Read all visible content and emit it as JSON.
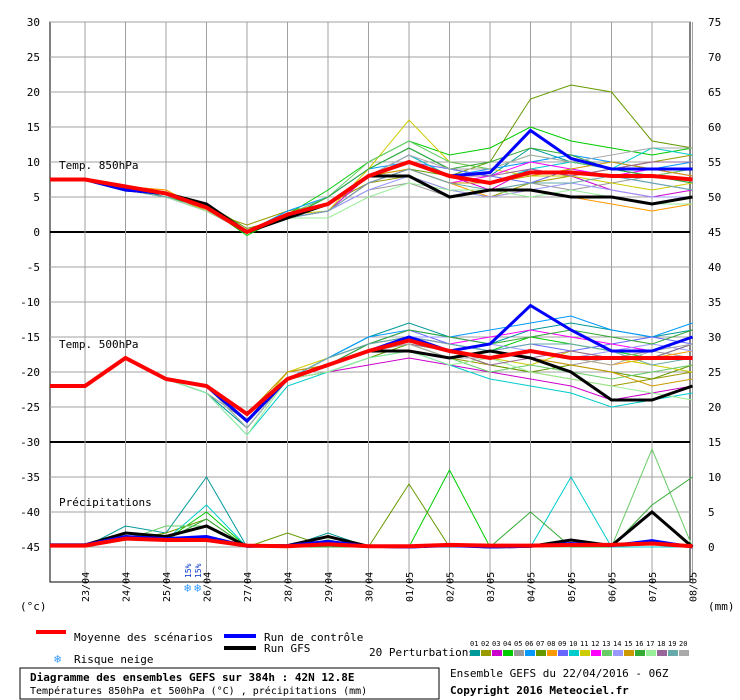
{
  "chart_data": {
    "type": "line",
    "dates": [
      "23/04",
      "24/04",
      "25/04",
      "26/04",
      "27/04",
      "28/04",
      "29/04",
      "30/04",
      "01/05",
      "02/05",
      "03/05",
      "04/05",
      "05/05",
      "06/05",
      "07/05",
      "08/05"
    ],
    "left_axis": {
      "unit": "(°c)",
      "ticks": [
        30,
        25,
        20,
        15,
        10,
        5,
        0,
        -5,
        -10,
        -15,
        -20,
        -25,
        -30,
        -35,
        -40,
        -45
      ]
    },
    "right_axis": {
      "unit": "(mm)",
      "ticks": [
        75,
        70,
        65,
        60,
        55,
        50,
        45,
        40,
        35,
        30,
        25,
        20,
        15,
        10,
        5,
        0
      ]
    },
    "panels": [
      {
        "label": "Temp. 850hPa",
        "ylim": [
          0,
          30
        ]
      },
      {
        "label": "Temp. 500hPa",
        "ylim": [
          -30,
          0
        ]
      },
      {
        "label": "Précipitations",
        "ylim": [
          0,
          10
        ]
      }
    ],
    "t850": {
      "mean": [
        7.5,
        6.5,
        5.5,
        3.5,
        0,
        2.5,
        4,
        8,
        10,
        8,
        7,
        8.5,
        8.5,
        8,
        8,
        7.5
      ],
      "control": [
        7.5,
        6,
        5.5,
        3.5,
        0,
        2.5,
        4,
        8,
        10,
        8,
        8.5,
        14.5,
        10.5,
        9,
        9,
        9
      ],
      "gfs": [
        7.5,
        6,
        5.5,
        4,
        0,
        2,
        4,
        8,
        8,
        5,
        6,
        6,
        5,
        5,
        4,
        5
      ],
      "perturbations": [
        [
          7.5,
          6.5,
          5,
          3,
          0,
          2,
          5,
          9,
          12,
          9,
          8,
          12,
          10,
          9,
          8,
          7
        ],
        [
          7.5,
          6.5,
          6,
          3,
          1,
          3,
          4,
          7,
          8,
          6,
          5,
          7,
          8,
          9,
          10,
          11
        ],
        [
          7.5,
          6,
          5,
          4,
          0,
          2,
          3,
          8,
          11,
          8,
          6,
          9,
          8,
          6,
          5,
          6
        ],
        [
          7.5,
          6.5,
          5.5,
          3.5,
          -0.5,
          2.5,
          6,
          10,
          13,
          11,
          12,
          15,
          13,
          12,
          11,
          12
        ],
        [
          7.5,
          6,
          5,
          4,
          0,
          2,
          3,
          6,
          7,
          5,
          6,
          7,
          6,
          7,
          8,
          9
        ],
        [
          7.5,
          6.5,
          5.5,
          3,
          0,
          3,
          5,
          9,
          10,
          8,
          9,
          10,
          11,
          10,
          9,
          10
        ],
        [
          7.5,
          6,
          5,
          4,
          0.5,
          2,
          3,
          7,
          9,
          8,
          10,
          19,
          21,
          20,
          13,
          12
        ],
        [
          7.5,
          6.5,
          6,
          3,
          0,
          2,
          4,
          8,
          9,
          7,
          5,
          6,
          5,
          4,
          3,
          4
        ],
        [
          7.5,
          6,
          5,
          3.5,
          0,
          2,
          4,
          8,
          10,
          9,
          8,
          7,
          9,
          8,
          7,
          6
        ],
        [
          7.5,
          6,
          5.5,
          3.5,
          0,
          2,
          4,
          8,
          11,
          8,
          7,
          9,
          10,
          9,
          12,
          11
        ],
        [
          7.5,
          6.5,
          5.5,
          4,
          0,
          2.5,
          3,
          9,
          16,
          10,
          9,
          8,
          8,
          7,
          6,
          7
        ],
        [
          7.5,
          6,
          5,
          3,
          0,
          2,
          3,
          7,
          9,
          7,
          8,
          10,
          9,
          8,
          9,
          8
        ],
        [
          7.5,
          6.5,
          5.5,
          3.5,
          0,
          2.5,
          5,
          10,
          13,
          10,
          9,
          11,
          10,
          9,
          8,
          9
        ],
        [
          7.5,
          6,
          5.5,
          3.5,
          0,
          2,
          3,
          6,
          8,
          6,
          5,
          6,
          7,
          6,
          5,
          5
        ],
        [
          7.5,
          6.5,
          5.5,
          3,
          0,
          2,
          4,
          8,
          9,
          7,
          7,
          8,
          9,
          10,
          9,
          8
        ],
        [
          7.5,
          6,
          5,
          3.5,
          0,
          2,
          5,
          9,
          12,
          9,
          10,
          12,
          11,
          9,
          8,
          7
        ],
        [
          7.5,
          6,
          5,
          3,
          0,
          2,
          2,
          5,
          7,
          6,
          6,
          5,
          6,
          5,
          4,
          4
        ],
        [
          7.5,
          6.5,
          5.5,
          3.5,
          0,
          2.5,
          4,
          8,
          10,
          8,
          8,
          9,
          8,
          9,
          10,
          10
        ],
        [
          7.5,
          6,
          5,
          4,
          0,
          2,
          3,
          7,
          9,
          7,
          6,
          7,
          7,
          8,
          7,
          6
        ],
        [
          7.5,
          6.5,
          5.5,
          3.5,
          0,
          2.5,
          4,
          8,
          11,
          9,
          9,
          11,
          10,
          11,
          12,
          12
        ]
      ]
    },
    "t500": {
      "mean": [
        -22,
        -18,
        -21,
        -22,
        -26,
        -21,
        -19,
        -17,
        -15.5,
        -17,
        -18,
        -17,
        -18,
        -18,
        -18,
        -18
      ],
      "control": [
        -22,
        -18,
        -21,
        -22,
        -27,
        -21,
        -19,
        -17,
        -15,
        -17,
        -16,
        -10.5,
        -14,
        -17,
        -17,
        -15
      ],
      "gfs": [
        -22,
        -18,
        -21,
        -22,
        -27,
        -21,
        -19,
        -17,
        -17,
        -18,
        -17,
        -18,
        -20,
        -24,
        -24,
        -22
      ],
      "perturbations": [
        [
          -22,
          -18,
          -21,
          -23,
          -28,
          -21,
          -18,
          -15,
          -13,
          -15,
          -16,
          -14,
          -13,
          -14,
          -15,
          -14
        ],
        [
          -22,
          -18,
          -21,
          -22,
          -26,
          -20,
          -19,
          -17,
          -16,
          -18,
          -19,
          -20,
          -21,
          -22,
          -21,
          -20
        ],
        [
          -22,
          -18,
          -21,
          -22,
          -27,
          -21,
          -20,
          -19,
          -18,
          -19,
          -20,
          -21,
          -22,
          -24,
          -23,
          -22
        ],
        [
          -22,
          -18,
          -21,
          -22,
          -26,
          -21,
          -18,
          -16,
          -15,
          -16,
          -17,
          -15,
          -16,
          -17,
          -18,
          -16
        ],
        [
          -22,
          -18,
          -21,
          -23,
          -27,
          -20,
          -19,
          -17,
          -16,
          -18,
          -17,
          -18,
          -19,
          -18,
          -17,
          -18
        ],
        [
          -22,
          -18,
          -21,
          -22,
          -28,
          -21,
          -18,
          -15,
          -14,
          -15,
          -14,
          -13,
          -12,
          -14,
          -15,
          -13
        ],
        [
          -22,
          -18,
          -21,
          -22,
          -26,
          -21,
          -20,
          -18,
          -16,
          -17,
          -19,
          -20,
          -19,
          -20,
          -21,
          -19
        ],
        [
          -22,
          -18,
          -21,
          -22,
          -27,
          -21,
          -19,
          -17,
          -16,
          -17,
          -18,
          -17,
          -18,
          -19,
          -18,
          -17
        ],
        [
          -22,
          -18,
          -21,
          -22,
          -26,
          -21,
          -19,
          -16,
          -14,
          -16,
          -17,
          -16,
          -17,
          -16,
          -15,
          -16
        ],
        [
          -22,
          -18,
          -21,
          -23,
          -29,
          -22,
          -20,
          -18,
          -17,
          -19,
          -21,
          -22,
          -23,
          -25,
          -24,
          -23
        ],
        [
          -22,
          -18,
          -21,
          -22,
          -27,
          -20,
          -18,
          -16,
          -15,
          -17,
          -18,
          -19,
          -17,
          -18,
          -19,
          -20
        ],
        [
          -22,
          -18,
          -21,
          -22,
          -26,
          -21,
          -19,
          -17,
          -15,
          -16,
          -15,
          -14,
          -15,
          -16,
          -17,
          -15
        ],
        [
          -22,
          -18,
          -21,
          -22,
          -28,
          -21,
          -19,
          -17,
          -16,
          -18,
          -20,
          -19,
          -20,
          -21,
          -20,
          -19
        ],
        [
          -22,
          -18,
          -21,
          -22,
          -27,
          -21,
          -18,
          -16,
          -15,
          -15,
          -16,
          -17,
          -18,
          -17,
          -16,
          -17
        ],
        [
          -22,
          -18,
          -21,
          -22,
          -26,
          -20,
          -19,
          -17,
          -17,
          -18,
          -17,
          -18,
          -19,
          -20,
          -22,
          -21
        ],
        [
          -22,
          -18,
          -21,
          -22,
          -27,
          -21,
          -19,
          -16,
          -14,
          -15,
          -16,
          -15,
          -14,
          -15,
          -16,
          -14
        ],
        [
          -22,
          -18,
          -21,
          -23,
          -29,
          -21,
          -20,
          -18,
          -17,
          -19,
          -18,
          -20,
          -21,
          -22,
          -23,
          -24
        ],
        [
          -22,
          -18,
          -21,
          -22,
          -27,
          -21,
          -19,
          -17,
          -16,
          -17,
          -19,
          -18,
          -17,
          -18,
          -18,
          -16
        ],
        [
          -22,
          -18,
          -21,
          -22,
          -26,
          -21,
          -18,
          -16,
          -15,
          -16,
          -17,
          -16,
          -16,
          -17,
          -19,
          -18
        ],
        [
          -22,
          -18,
          -21,
          -22,
          -28,
          -21,
          -19,
          -17,
          -16,
          -18,
          -18,
          -17,
          -18,
          -19,
          -17,
          -16
        ]
      ]
    },
    "precip": {
      "mean": [
        0.2,
        1.2,
        1.0,
        1.0,
        0.2,
        0.1,
        0.4,
        0.1,
        0.1,
        0.3,
        0.2,
        0.2,
        0.3,
        0.3,
        0.5,
        0.1
      ],
      "control": [
        0.3,
        1.5,
        1.2,
        1.5,
        0.1,
        0.2,
        0.8,
        0.1,
        0,
        0.2,
        0,
        0.1,
        0.5,
        0.2,
        0.9,
        0
      ],
      "gfs": [
        0.3,
        2.0,
        1.5,
        3.0,
        0.1,
        0.2,
        1.5,
        0.1,
        0,
        0.3,
        0,
        0.1,
        1.0,
        0.2,
        5.0,
        0
      ],
      "spikes": [
        [
          0,
          3,
          2,
          10,
          0,
          0,
          2,
          0,
          0,
          0,
          0,
          0,
          0,
          0,
          0,
          0
        ],
        [
          0,
          2,
          1,
          5,
          0,
          0,
          1,
          0,
          0,
          11,
          0,
          0,
          0,
          0,
          0,
          0
        ],
        [
          0,
          1,
          2,
          4,
          0,
          2,
          0,
          0,
          9,
          0,
          0,
          0,
          0,
          0,
          0,
          0
        ],
        [
          0,
          2,
          1,
          6,
          0,
          0,
          0,
          0,
          0,
          0,
          0,
          0,
          10,
          0,
          0,
          0
        ],
        [
          0,
          1,
          3,
          3,
          0,
          0,
          0,
          0,
          0,
          0,
          0,
          0,
          0,
          0,
          14,
          0
        ],
        [
          0,
          2,
          1,
          4,
          0,
          0,
          0,
          0,
          0,
          0,
          0,
          5,
          0,
          0,
          6,
          10
        ]
      ]
    },
    "ensemble_colors": [
      "#009999",
      "#999900",
      "#cc00cc",
      "#00cc00",
      "#999999",
      "#0099ff",
      "#669900",
      "#ff9900",
      "#6666ff",
      "#00cccc",
      "#cccc00",
      "#ff00ff",
      "#66cc66",
      "#9999ff",
      "#cc9900",
      "#33aa33",
      "#99ee99",
      "#996699",
      "#66aaaa",
      "#aaaaaa"
    ],
    "snow_risk": [
      {
        "date": "25/04",
        "pct": "15%"
      },
      {
        "date": "25/04",
        "pct": "15%"
      }
    ]
  },
  "legend": {
    "mean_label": "Moyenne des scénarios",
    "control_label": "Run de contrôle",
    "gfs_label": "Run GFS",
    "pert_label": "20 Perturbations",
    "snow_label": "Risque neige",
    "pert_numbers": [
      "01",
      "02",
      "03",
      "04",
      "05",
      "06",
      "07",
      "08",
      "09",
      "10",
      "11",
      "12",
      "13",
      "14",
      "15",
      "16",
      "17",
      "18",
      "19",
      "20"
    ]
  },
  "footer": {
    "title": "Diagramme des ensembles GEFS sur 384h : 42N 12.8E",
    "subtitle": "Températures 850hPa et 500hPa (°C) , précipitations (mm)",
    "ensemble": "Ensemble GEFS du 22/04/2016 - 06Z",
    "copyright": "Copyright 2016 Meteociel.fr"
  },
  "colors": {
    "mean": "#ff0000",
    "control": "#0000ff",
    "gfs": "#000000",
    "grid": "#808080"
  }
}
